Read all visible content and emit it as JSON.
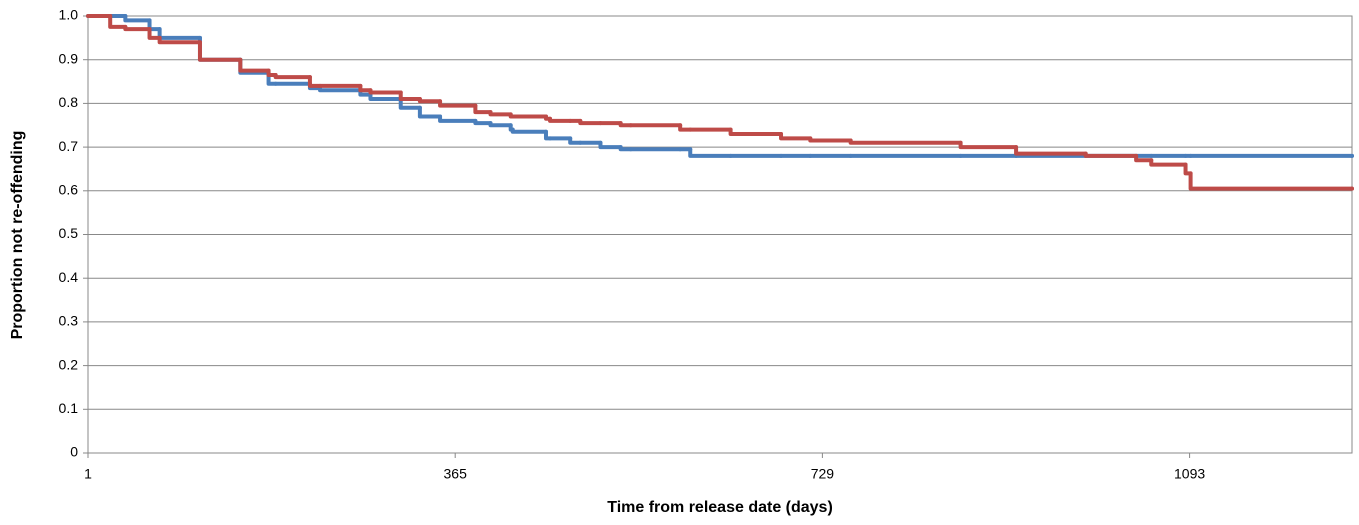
{
  "chart_data": {
    "type": "step",
    "xlabel": "Time from release date (days)",
    "ylabel": "Proportion not re-offending",
    "x": [
      1,
      23,
      38,
      62,
      72,
      112,
      152,
      180,
      187,
      221,
      231,
      271,
      281,
      311,
      330,
      350,
      385,
      400,
      420,
      422,
      455,
      459,
      479,
      489,
      509,
      529,
      539,
      588,
      598,
      638,
      688,
      717,
      757,
      866,
      921,
      990,
      1040,
      1055,
      1089,
      1094,
      1254
    ],
    "series": [
      {
        "color": "#4a7ebb",
        "values": [
          1.0,
          1.0,
          0.99,
          0.97,
          0.95,
          0.9,
          0.87,
          0.845,
          0.845,
          0.835,
          0.83,
          0.82,
          0.81,
          0.79,
          0.77,
          0.76,
          0.755,
          0.75,
          0.74,
          0.735,
          0.72,
          0.72,
          0.71,
          0.71,
          0.7,
          0.695,
          0.695,
          0.695,
          0.68,
          0.68,
          0.68,
          0.68,
          0.68,
          0.68,
          0.68,
          0.68,
          0.68,
          0.68,
          0.68,
          0.68,
          0.68
        ]
      },
      {
        "color": "#be4b48",
        "values": [
          1.0,
          0.975,
          0.97,
          0.95,
          0.94,
          0.9,
          0.875,
          0.865,
          0.86,
          0.84,
          0.84,
          0.83,
          0.825,
          0.81,
          0.805,
          0.795,
          0.78,
          0.775,
          0.77,
          0.77,
          0.765,
          0.76,
          0.76,
          0.755,
          0.755,
          0.75,
          0.75,
          0.74,
          0.74,
          0.73,
          0.72,
          0.715,
          0.71,
          0.7,
          0.685,
          0.68,
          0.67,
          0.66,
          0.64,
          0.605,
          0.605
        ]
      }
    ],
    "xlim": [
      1,
      1254
    ],
    "xticks": [
      1,
      365,
      729,
      1093
    ],
    "ylim": [
      0,
      1
    ],
    "yticks": [
      0,
      0.1,
      0.2,
      0.3,
      0.4,
      0.5,
      0.6,
      0.7,
      0.8,
      0.9,
      {
        "value": 1,
        "label": "1.0"
      }
    ],
    "grid": true
  }
}
